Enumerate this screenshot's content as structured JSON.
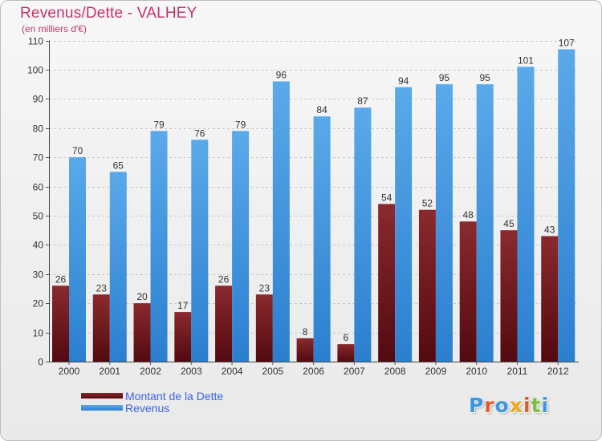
{
  "chart_data": {
    "type": "bar",
    "title": "Revenus/Dette - VALHEY",
    "subtitle": "(en milliers d'€)",
    "categories": [
      "2000",
      "2001",
      "2002",
      "2003",
      "2004",
      "2005",
      "2006",
      "2007",
      "2008",
      "2009",
      "2010",
      "2011",
      "2012"
    ],
    "series": [
      {
        "name": "Montant de la Dette",
        "color": "#7a1a1f",
        "values": [
          26,
          23,
          20,
          17,
          26,
          23,
          8,
          6,
          54,
          52,
          48,
          45,
          43
        ]
      },
      {
        "name": "Revenus",
        "color": "#3f97de",
        "values": [
          70,
          65,
          79,
          76,
          79,
          96,
          84,
          87,
          94,
          95,
          95,
          101,
          107
        ]
      }
    ],
    "ylim": [
      0,
      110
    ],
    "yticks": [
      0,
      10,
      20,
      30,
      40,
      50,
      60,
      70,
      80,
      90,
      100,
      110
    ],
    "grid": true,
    "legend_position": "bottom-left"
  },
  "logo": {
    "text": "Proxiti",
    "colors": [
      "#3f97de",
      "#e55a2b",
      "#3f97de",
      "#f0a81c",
      "#e55a2b",
      "#7bbf3a",
      "#3f97de"
    ]
  }
}
